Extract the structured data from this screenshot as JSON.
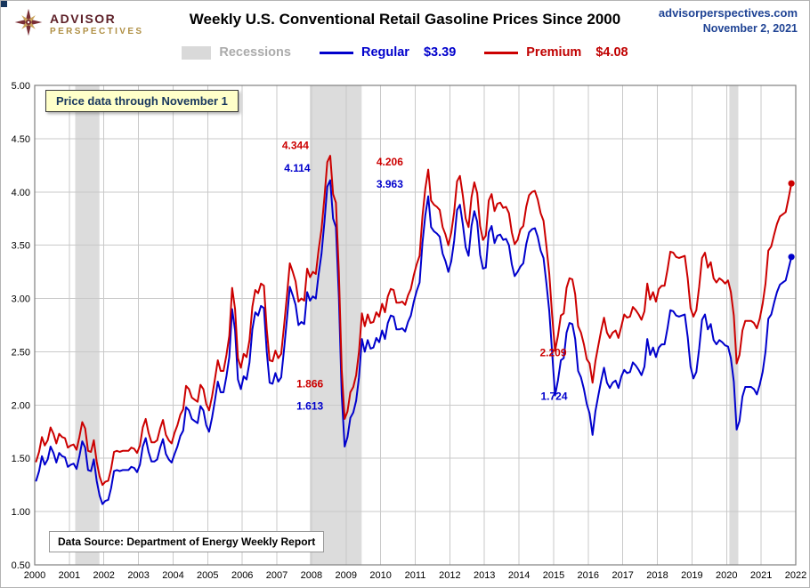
{
  "header": {
    "logo_line1": "ADVISOR",
    "logo_line2": "PERSPECTIVES",
    "title": "Weekly U.S. Conventional Retail Gasoline Prices Since 2000",
    "site": "advisorperspectives.com",
    "date": "November 2, 2021"
  },
  "legend": {
    "recessions": "Recessions",
    "regular_label": "Regular",
    "regular_value": "$3.39",
    "premium_label": "Premium",
    "premium_value": "$4.08"
  },
  "note": "Price data through November 1",
  "source": "Data Source: Department of Energy Weekly Report",
  "chart_data": {
    "type": "line",
    "title": "Weekly U.S. Conventional Retail Gasoline Prices Since 2000",
    "x_range": [
      2000,
      2022
    ],
    "y_range": [
      0.5,
      5.0
    ],
    "x_ticks": [
      "2000",
      "2001",
      "2002",
      "2003",
      "2004",
      "2005",
      "2006",
      "2007",
      "2008",
      "2009",
      "2010",
      "2011",
      "2012",
      "2013",
      "2014",
      "2015",
      "2016",
      "2017",
      "2018",
      "2019",
      "2020",
      "2021",
      "2022"
    ],
    "y_ticks": [
      "0.50",
      "1.00",
      "1.50",
      "2.00",
      "2.50",
      "3.00",
      "3.50",
      "4.00",
      "4.50",
      "5.00"
    ],
    "grid": true,
    "legend_position": "top",
    "colors": {
      "regular": "#0000CC",
      "premium": "#CC0000",
      "recession_band": "#DCDCDC",
      "grid": "#C9C9C9",
      "plot_border": "#808080"
    },
    "recessions": [
      {
        "start": 2001.17,
        "end": 2001.87
      },
      {
        "start": 2007.95,
        "end": 2009.45
      },
      {
        "start": 2020.08,
        "end": 2020.34
      }
    ],
    "series": [
      {
        "name": "Regular",
        "current": "$3.39",
        "color": "#0000CC",
        "values": [
          1.29,
          1.38,
          1.52,
          1.44,
          1.49,
          1.61,
          1.55,
          1.46,
          1.55,
          1.52,
          1.51,
          1.42,
          1.44,
          1.45,
          1.4,
          1.52,
          1.66,
          1.6,
          1.39,
          1.38,
          1.49,
          1.29,
          1.15,
          1.07,
          1.1,
          1.11,
          1.22,
          1.38,
          1.39,
          1.38,
          1.39,
          1.39,
          1.39,
          1.42,
          1.41,
          1.37,
          1.44,
          1.61,
          1.69,
          1.56,
          1.47,
          1.47,
          1.49,
          1.6,
          1.68,
          1.54,
          1.49,
          1.46,
          1.54,
          1.61,
          1.71,
          1.76,
          1.98,
          1.95,
          1.87,
          1.85,
          1.83,
          1.99,
          1.95,
          1.81,
          1.75,
          1.88,
          2.04,
          2.22,
          2.12,
          2.12,
          2.27,
          2.45,
          2.9,
          2.7,
          2.24,
          2.15,
          2.27,
          2.24,
          2.4,
          2.71,
          2.87,
          2.84,
          2.93,
          2.91,
          2.5,
          2.21,
          2.2,
          2.3,
          2.22,
          2.26,
          2.52,
          2.81,
          3.11,
          3.03,
          2.94,
          2.75,
          2.78,
          2.76,
          3.06,
          2.98,
          3.02,
          3.0,
          3.23,
          3.42,
          3.72,
          4.05,
          4.11,
          3.75,
          3.67,
          3.02,
          2.1,
          1.61,
          1.7,
          1.88,
          1.93,
          2.04,
          2.26,
          2.62,
          2.5,
          2.61,
          2.53,
          2.54,
          2.63,
          2.59,
          2.7,
          2.62,
          2.77,
          2.84,
          2.83,
          2.71,
          2.71,
          2.72,
          2.69,
          2.78,
          2.84,
          2.97,
          3.07,
          3.15,
          3.52,
          3.78,
          3.96,
          3.67,
          3.63,
          3.61,
          3.58,
          3.42,
          3.35,
          3.25,
          3.35,
          3.54,
          3.83,
          3.88,
          3.7,
          3.48,
          3.4,
          3.68,
          3.82,
          3.72,
          3.41,
          3.28,
          3.29,
          3.62,
          3.68,
          3.52,
          3.59,
          3.6,
          3.55,
          3.56,
          3.5,
          3.32,
          3.21,
          3.25,
          3.3,
          3.33,
          3.51,
          3.62,
          3.65,
          3.66,
          3.58,
          3.45,
          3.38,
          3.14,
          2.88,
          2.49,
          2.09,
          2.23,
          2.42,
          2.44,
          2.68,
          2.77,
          2.76,
          2.62,
          2.32,
          2.26,
          2.15,
          2.01,
          1.92,
          1.72,
          1.94,
          2.09,
          2.23,
          2.35,
          2.21,
          2.16,
          2.21,
          2.23,
          2.16,
          2.27,
          2.33,
          2.3,
          2.31,
          2.4,
          2.37,
          2.33,
          2.28,
          2.36,
          2.62,
          2.47,
          2.54,
          2.45,
          2.54,
          2.57,
          2.57,
          2.72,
          2.89,
          2.88,
          2.84,
          2.83,
          2.84,
          2.85,
          2.64,
          2.36,
          2.25,
          2.31,
          2.53,
          2.8,
          2.85,
          2.71,
          2.76,
          2.61,
          2.57,
          2.61,
          2.59,
          2.56,
          2.55,
          2.44,
          2.22,
          1.77,
          1.85,
          2.08,
          2.17,
          2.17,
          2.17,
          2.15,
          2.1,
          2.19,
          2.31,
          2.5,
          2.81,
          2.85,
          2.96,
          3.06,
          3.13,
          3.15,
          3.17,
          3.28,
          3.39
        ]
      },
      {
        "name": "Premium",
        "current": "$4.08",
        "color": "#CC0000",
        "values": [
          1.47,
          1.56,
          1.7,
          1.62,
          1.67,
          1.79,
          1.73,
          1.64,
          1.73,
          1.7,
          1.69,
          1.6,
          1.62,
          1.63,
          1.58,
          1.7,
          1.84,
          1.78,
          1.57,
          1.56,
          1.67,
          1.47,
          1.33,
          1.25,
          1.28,
          1.29,
          1.4,
          1.56,
          1.57,
          1.56,
          1.57,
          1.57,
          1.57,
          1.6,
          1.59,
          1.55,
          1.62,
          1.79,
          1.87,
          1.74,
          1.65,
          1.65,
          1.67,
          1.78,
          1.86,
          1.72,
          1.67,
          1.64,
          1.74,
          1.81,
          1.91,
          1.96,
          2.18,
          2.15,
          2.07,
          2.05,
          2.03,
          2.19,
          2.15,
          2.01,
          1.95,
          2.08,
          2.24,
          2.42,
          2.32,
          2.32,
          2.47,
          2.65,
          3.1,
          2.9,
          2.44,
          2.35,
          2.48,
          2.45,
          2.61,
          2.92,
          3.08,
          3.05,
          3.14,
          3.12,
          2.71,
          2.42,
          2.41,
          2.51,
          2.44,
          2.48,
          2.74,
          3.03,
          3.33,
          3.25,
          3.16,
          2.97,
          3.0,
          2.98,
          3.28,
          3.2,
          3.25,
          3.23,
          3.46,
          3.65,
          3.95,
          4.28,
          4.34,
          3.98,
          3.9,
          3.25,
          2.33,
          1.87,
          1.94,
          2.12,
          2.17,
          2.28,
          2.5,
          2.86,
          2.74,
          2.85,
          2.77,
          2.78,
          2.87,
          2.83,
          2.95,
          2.87,
          3.02,
          3.09,
          3.08,
          2.96,
          2.96,
          2.97,
          2.94,
          3.03,
          3.09,
          3.22,
          3.32,
          3.4,
          3.77,
          4.03,
          4.21,
          3.92,
          3.88,
          3.86,
          3.83,
          3.67,
          3.6,
          3.5,
          3.62,
          3.81,
          4.1,
          4.15,
          3.97,
          3.75,
          3.67,
          3.95,
          4.09,
          3.99,
          3.68,
          3.55,
          3.59,
          3.92,
          3.98,
          3.82,
          3.89,
          3.9,
          3.85,
          3.86,
          3.8,
          3.62,
          3.51,
          3.55,
          3.65,
          3.68,
          3.86,
          3.97,
          4.0,
          4.01,
          3.93,
          3.8,
          3.73,
          3.49,
          3.23,
          2.84,
          2.51,
          2.65,
          2.84,
          2.86,
          3.1,
          3.19,
          3.18,
          3.04,
          2.74,
          2.68,
          2.57,
          2.43,
          2.39,
          2.21,
          2.41,
          2.56,
          2.7,
          2.82,
          2.68,
          2.63,
          2.68,
          2.7,
          2.63,
          2.74,
          2.85,
          2.82,
          2.83,
          2.92,
          2.89,
          2.85,
          2.8,
          2.88,
          3.14,
          2.99,
          3.06,
          2.97,
          3.09,
          3.12,
          3.12,
          3.27,
          3.44,
          3.43,
          3.39,
          3.38,
          3.39,
          3.4,
          3.19,
          2.91,
          2.83,
          2.89,
          3.11,
          3.38,
          3.43,
          3.29,
          3.34,
          3.19,
          3.15,
          3.19,
          3.17,
          3.14,
          3.17,
          3.06,
          2.84,
          2.39,
          2.47,
          2.7,
          2.79,
          2.79,
          2.79,
          2.77,
          2.72,
          2.81,
          2.95,
          3.14,
          3.45,
          3.49,
          3.6,
          3.7,
          3.77,
          3.79,
          3.81,
          3.94,
          4.08
        ]
      }
    ],
    "annotations": [
      {
        "text": "4.344",
        "series": "premium",
        "year": 2008.54,
        "value": 4.344
      },
      {
        "text": "4.114",
        "series": "regular",
        "year": 2008.54,
        "value": 4.114
      },
      {
        "text": "4.206",
        "series": "premium",
        "year": 2011.37,
        "value": 4.206
      },
      {
        "text": "3.963",
        "series": "regular",
        "year": 2011.37,
        "value": 3.963
      },
      {
        "text": "1.866",
        "series": "premium",
        "year": 2008.96,
        "value": 1.866
      },
      {
        "text": "1.613",
        "series": "regular",
        "year": 2008.96,
        "value": 1.613
      },
      {
        "text": "2.209",
        "series": "premium",
        "year": 2016.12,
        "value": 2.209
      },
      {
        "text": "1.724",
        "series": "regular",
        "year": 2016.12,
        "value": 1.724
      }
    ]
  }
}
